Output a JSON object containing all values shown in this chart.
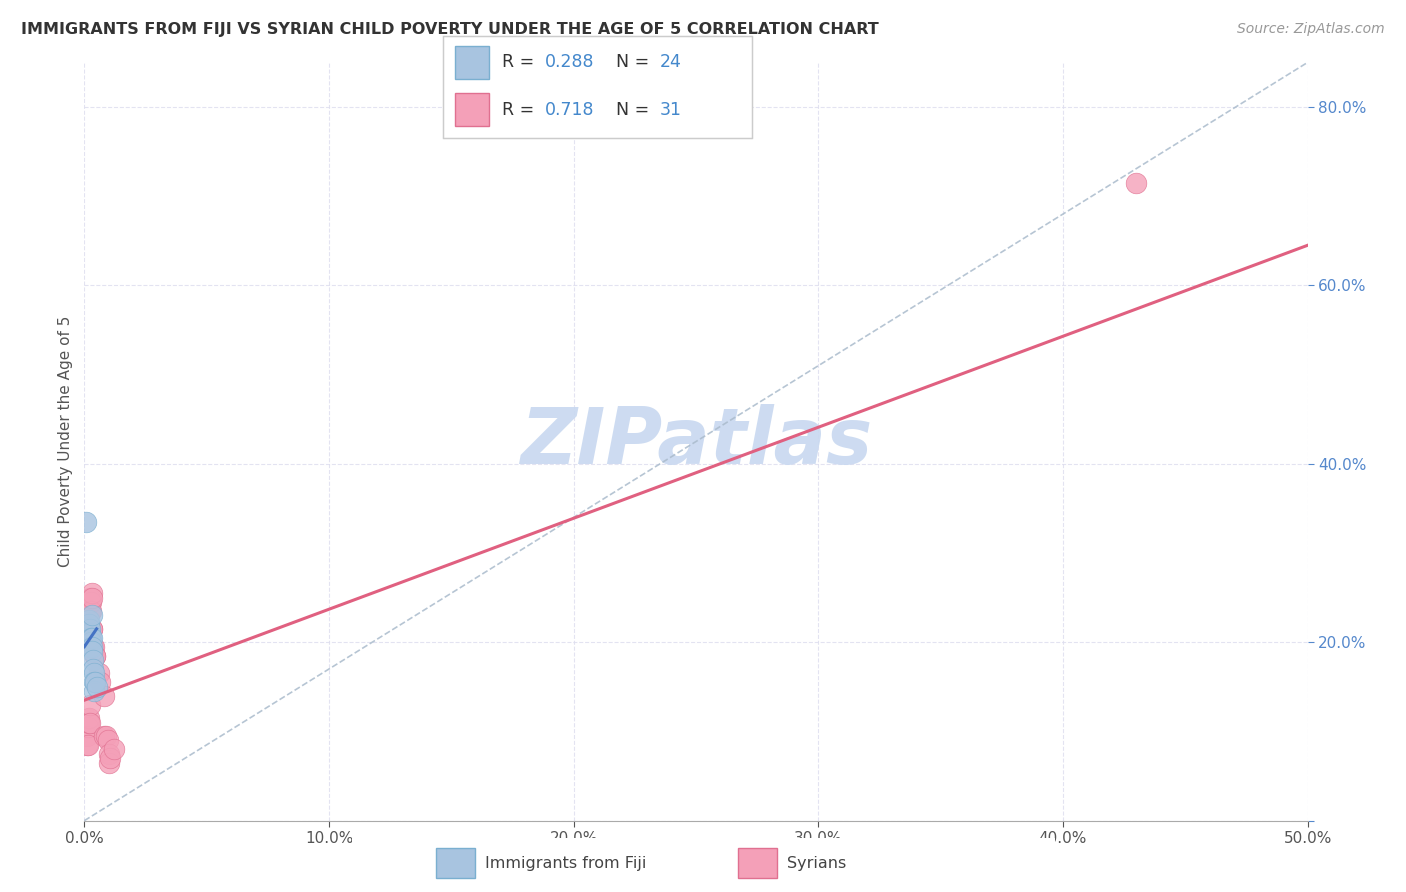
{
  "title": "IMMIGRANTS FROM FIJI VS SYRIAN CHILD POVERTY UNDER THE AGE OF 5 CORRELATION CHART",
  "source": "Source: ZipAtlas.com",
  "ylabel": "Child Poverty Under the Age of 5",
  "xlim": [
    0.0,
    0.5
  ],
  "ylim": [
    0.0,
    0.85
  ],
  "fiji_color": "#a8c4e0",
  "fiji_edge_color": "#7aafd0",
  "syrian_color": "#f4a0b8",
  "syrian_edge_color": "#e07090",
  "fiji_R": 0.288,
  "fiji_N": 24,
  "syrian_R": 0.718,
  "syrian_N": 31,
  "fiji_line_color": "#4472c4",
  "syrian_line_color": "#e06080",
  "ref_line_color": "#aabbcc",
  "watermark_color": "#c8d8f0",
  "legend_fiji_label": "Immigrants from Fiji",
  "legend_syrian_label": "Syrians",
  "fiji_points": [
    [
      0.0008,
      0.335
    ],
    [
      0.001,
      0.215
    ],
    [
      0.0013,
      0.215
    ],
    [
      0.0015,
      0.21
    ],
    [
      0.0016,
      0.205
    ],
    [
      0.0018,
      0.225
    ],
    [
      0.002,
      0.22
    ],
    [
      0.0022,
      0.21
    ],
    [
      0.0022,
      0.2
    ],
    [
      0.0025,
      0.215
    ],
    [
      0.0025,
      0.195
    ],
    [
      0.0027,
      0.205
    ],
    [
      0.0028,
      0.2
    ],
    [
      0.003,
      0.23
    ],
    [
      0.003,
      0.205
    ],
    [
      0.0032,
      0.195
    ],
    [
      0.0033,
      0.19
    ],
    [
      0.0035,
      0.18
    ],
    [
      0.0035,
      0.17
    ],
    [
      0.0038,
      0.165
    ],
    [
      0.004,
      0.155
    ],
    [
      0.004,
      0.145
    ],
    [
      0.0045,
      0.155
    ],
    [
      0.005,
      0.15
    ]
  ],
  "syrian_points": [
    [
      0.001,
      0.095
    ],
    [
      0.0012,
      0.085
    ],
    [
      0.0015,
      0.105
    ],
    [
      0.0015,
      0.085
    ],
    [
      0.0018,
      0.115
    ],
    [
      0.002,
      0.11
    ],
    [
      0.0022,
      0.13
    ],
    [
      0.0022,
      0.11
    ],
    [
      0.0025,
      0.25
    ],
    [
      0.0025,
      0.235
    ],
    [
      0.0028,
      0.245
    ],
    [
      0.0028,
      0.235
    ],
    [
      0.003,
      0.255
    ],
    [
      0.003,
      0.215
    ],
    [
      0.0032,
      0.25
    ],
    [
      0.0033,
      0.215
    ],
    [
      0.0035,
      0.195
    ],
    [
      0.004,
      0.195
    ],
    [
      0.0042,
      0.185
    ],
    [
      0.0045,
      0.185
    ],
    [
      0.006,
      0.165
    ],
    [
      0.0065,
      0.155
    ],
    [
      0.008,
      0.14
    ],
    [
      0.008,
      0.095
    ],
    [
      0.009,
      0.095
    ],
    [
      0.0095,
      0.09
    ],
    [
      0.01,
      0.075
    ],
    [
      0.01,
      0.065
    ],
    [
      0.0105,
      0.07
    ],
    [
      0.012,
      0.08
    ],
    [
      0.43,
      0.715
    ]
  ],
  "syrian_line": [
    0.0,
    0.135,
    0.5,
    0.645
  ],
  "fiji_line": [
    0.0,
    0.195,
    0.005,
    0.215
  ],
  "ref_line": [
    0.0,
    0.0,
    0.5,
    0.85
  ]
}
